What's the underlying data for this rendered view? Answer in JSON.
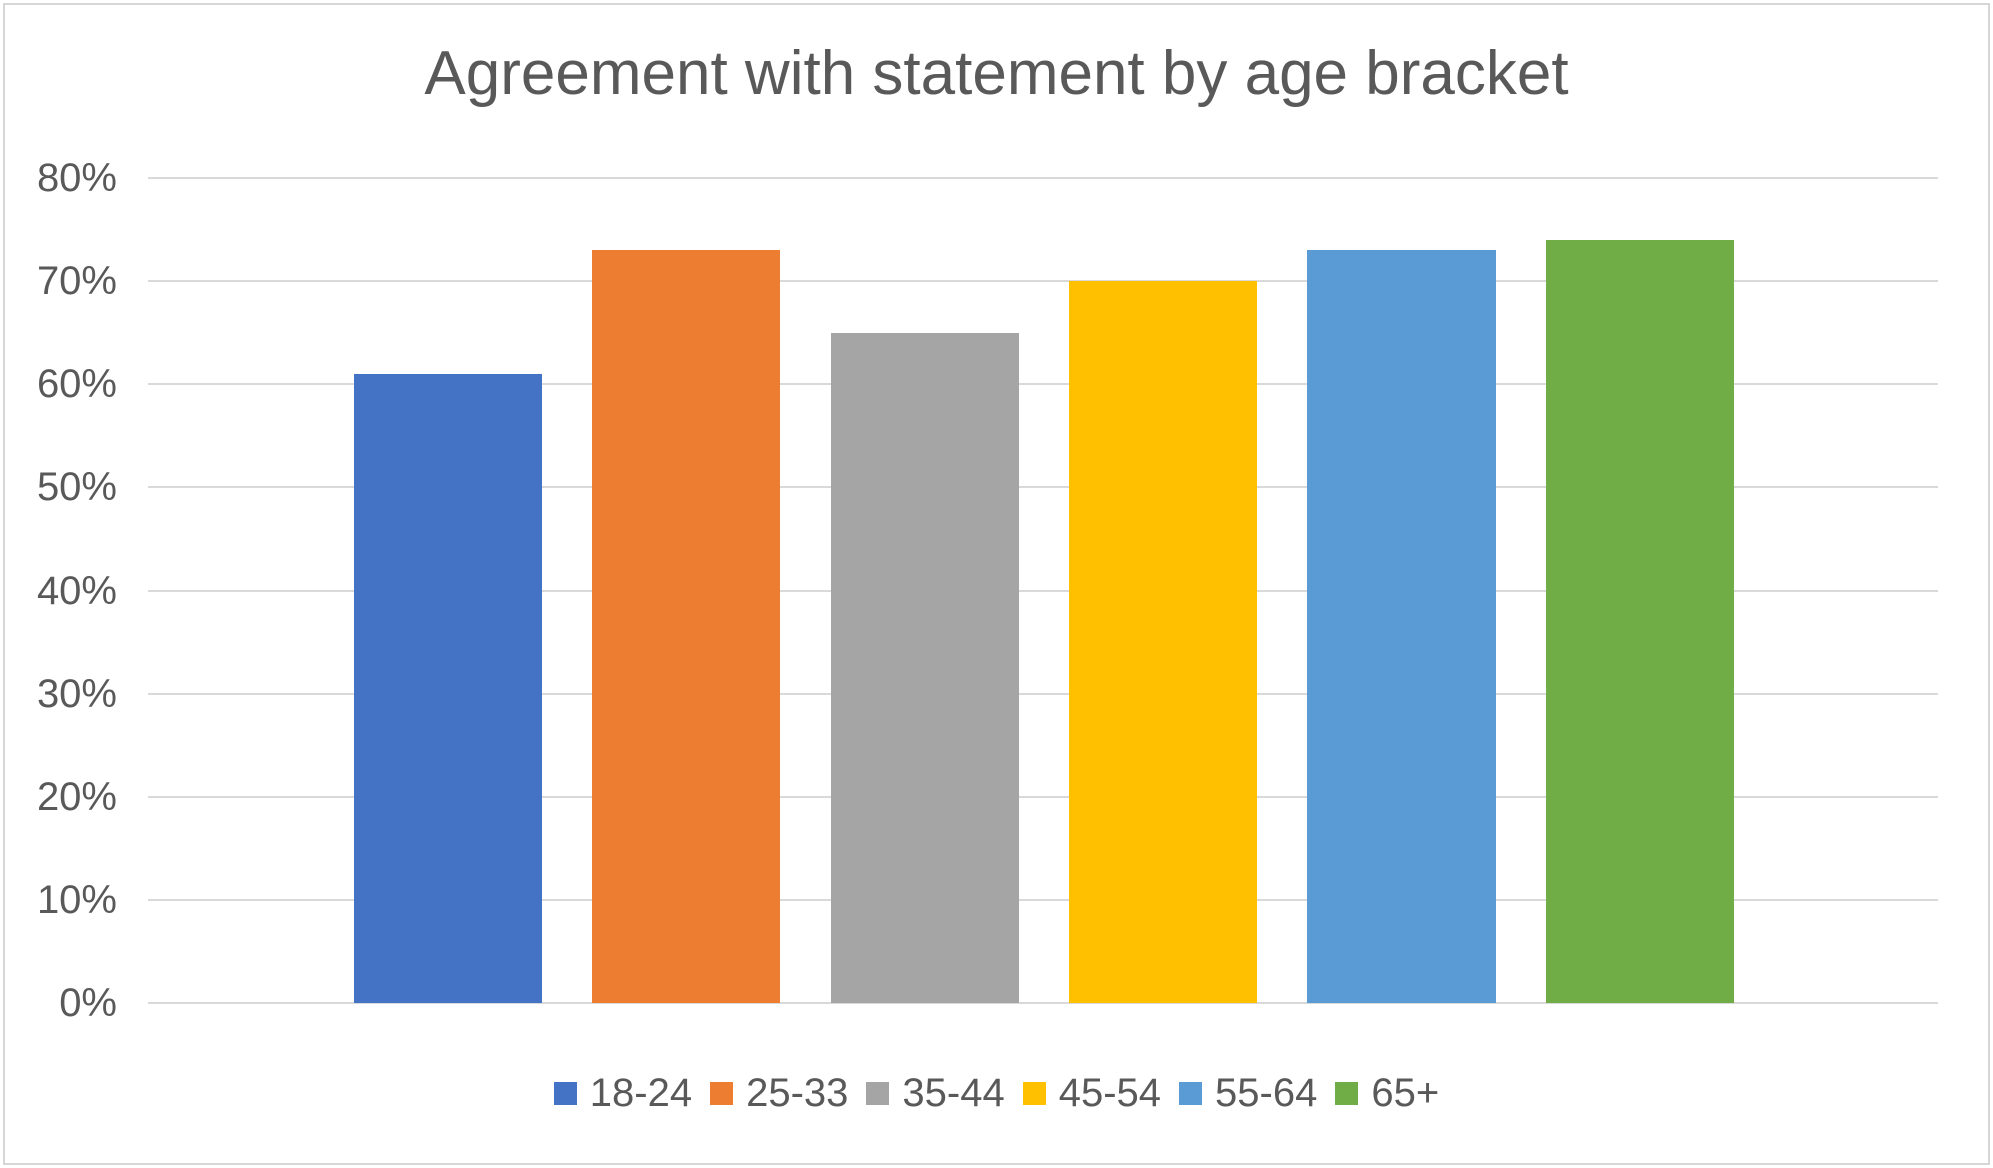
{
  "chart": {
    "title": "Agreement with statement by age bracket"
  },
  "chart_data": {
    "type": "bar",
    "title": "Agreement with statement by age bracket",
    "categories": [
      "18-24",
      "25-33",
      "35-44",
      "45-54",
      "55-64",
      "65+"
    ],
    "values": [
      61,
      73,
      65,
      70,
      73,
      74
    ],
    "unit": "%",
    "xlabel": "",
    "ylabel": "",
    "ylim": [
      0,
      80
    ],
    "y_ticks": [
      0,
      10,
      20,
      30,
      40,
      50,
      60,
      70,
      80
    ],
    "y_tick_labels": [
      "0%",
      "10%",
      "20%",
      "30%",
      "40%",
      "50%",
      "60%",
      "70%",
      "80%"
    ],
    "grid": true,
    "legend_position": "bottom",
    "colors": [
      "#4472C4",
      "#ED7D31",
      "#A5A5A5",
      "#FFC000",
      "#5B9BD5",
      "#70AD47"
    ],
    "text_color": "#595959",
    "gridline_color": "#D9D9D9",
    "background_color": "#FFFFFF",
    "border_color": "#D6D6D6"
  }
}
